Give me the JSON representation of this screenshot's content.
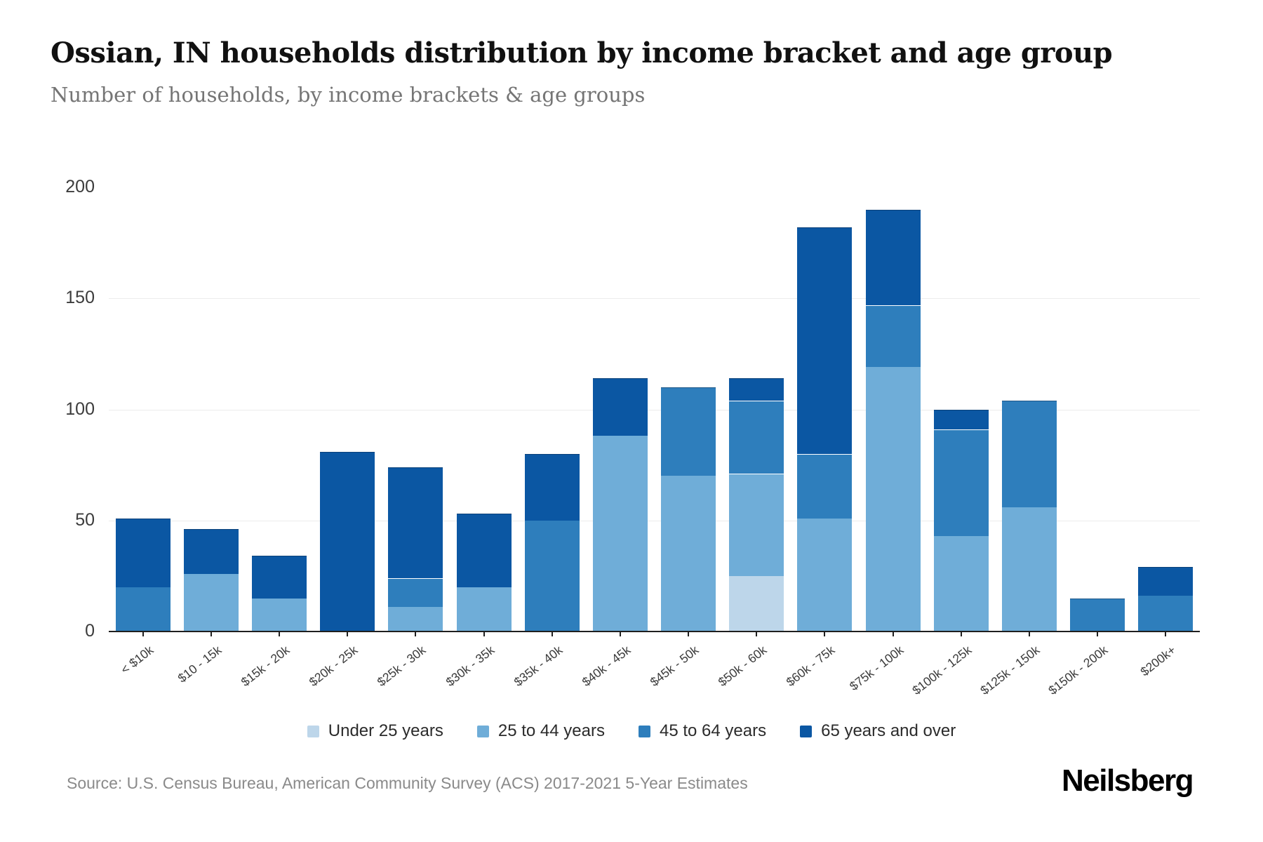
{
  "header": {
    "title": "Ossian, IN households distribution by income bracket and age group",
    "subtitle": "Number of households, by income brackets & age groups"
  },
  "footer": {
    "source": "Source: U.S. Census Bureau, American Community Survey (ACS) 2017-2021 5-Year Estimates",
    "brand": "Neilsberg"
  },
  "chart_data": {
    "type": "bar",
    "stacked": true,
    "title": "Ossian, IN households distribution by income bracket and age group",
    "xlabel": "",
    "ylabel": "Number of households",
    "ylim": [
      0,
      200
    ],
    "yticks": [
      0,
      50,
      100,
      150,
      200
    ],
    "grid": "horizontal-at-50-100-150",
    "legend_position": "bottom",
    "categories": [
      "< $10k",
      "$10 - 15k",
      "$15k - 20k",
      "$20k - 25k",
      "$25k - 30k",
      "$30k - 35k",
      "$35k - 40k",
      "$40k - 45k",
      "$45k - 50k",
      "$50k - 60k",
      "$60k - 75k",
      "$75k - 100k",
      "$100k - 125k",
      "$125k - 150k",
      "$150k - 200k",
      "$200k+"
    ],
    "series": [
      {
        "name": "Under 25 years",
        "color": "#bdd6ea",
        "values": [
          0,
          0,
          0,
          0,
          0,
          0,
          0,
          0,
          0,
          25,
          0,
          0,
          0,
          0,
          0,
          0
        ]
      },
      {
        "name": "25 to 44 years",
        "color": "#6fadd8",
        "values": [
          0,
          26,
          15,
          0,
          11,
          20,
          0,
          88,
          70,
          46,
          51,
          119,
          43,
          56,
          0,
          0
        ]
      },
      {
        "name": "45 to 64 years",
        "color": "#2e7ebc",
        "values": [
          20,
          0,
          0,
          0,
          13,
          0,
          50,
          0,
          40,
          33,
          29,
          28,
          48,
          48,
          15,
          16
        ]
      },
      {
        "name": "65 years and over",
        "color": "#0b57a3",
        "values": [
          31,
          20,
          19,
          81,
          50,
          33,
          30,
          26,
          0,
          10,
          102,
          43,
          9,
          0,
          0,
          13
        ]
      }
    ],
    "totals": [
      51,
      46,
      34,
      81,
      74,
      53,
      80,
      114,
      110,
      114,
      182,
      190,
      100,
      104,
      15,
      29
    ]
  }
}
